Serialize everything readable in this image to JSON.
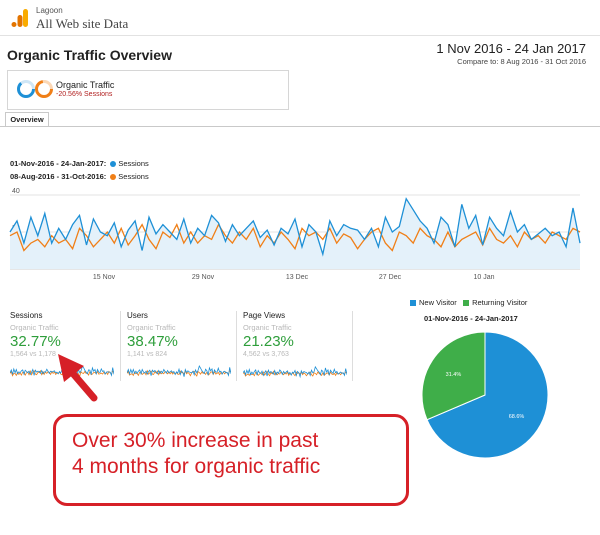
{
  "header": {
    "account_sub": "Lagoon",
    "account_name": "All Web site Data",
    "icon": "google-analytics-logo"
  },
  "report": {
    "title": "Organic Traffic Overview",
    "date_range": "1 Nov 2016 - 24 Jan 2017",
    "compare": "Compare to: 8 Aug 2016 - 31 Oct 2016"
  },
  "segment": {
    "label": "Organic Traffic",
    "change": "-20.56% Sessions"
  },
  "tabs": [
    {
      "label": "Overview"
    }
  ],
  "legend": {
    "current_range": "01-Nov-2016 - 24-Jan-2017:",
    "previous_range": "08-Aug-2016 - 31-Oct-2016:",
    "series_name": "Sessions"
  },
  "colors": {
    "current": "#1e90d6",
    "previous": "#f07f17",
    "new_visitor": "#1e90d6",
    "returning_visitor": "#3fae49",
    "callout": "#d62027",
    "positive": "#2e9e3b"
  },
  "chart_data": {
    "type": "line",
    "y_ticks": [
      "40",
      "20"
    ],
    "ylim": [
      0,
      40
    ],
    "x_ticks": [
      "15 Nov",
      "29 Nov",
      "13 Dec",
      "27 Dec",
      "10 Jan"
    ],
    "series": [
      {
        "name": "Sessions",
        "values": [
          20,
          26,
          14,
          28,
          18,
          30,
          14,
          22,
          16,
          24,
          29,
          13,
          27,
          20,
          18,
          25,
          12,
          21,
          26,
          10,
          28,
          19,
          24,
          20,
          16,
          27,
          14,
          22,
          18,
          29,
          25,
          15,
          24,
          18,
          22,
          26,
          17,
          21,
          13,
          22,
          19,
          27,
          12,
          24,
          20,
          8,
          26,
          18,
          24,
          22,
          21,
          16,
          22,
          12,
          28,
          20,
          23,
          38,
          32,
          26,
          22,
          14,
          28,
          24,
          12,
          35,
          22,
          29,
          13,
          28,
          22,
          18,
          31,
          20,
          24,
          16,
          19,
          22,
          18,
          20,
          12,
          33,
          14
        ]
      },
      {
        "name": "Sessions",
        "values": [
          18,
          20,
          10,
          14,
          16,
          12,
          18,
          14,
          16,
          11,
          22,
          18,
          12,
          16,
          20,
          14,
          22,
          13,
          18,
          24,
          16,
          11,
          20,
          17,
          24,
          14,
          20,
          14,
          18,
          16,
          24,
          18,
          14,
          20,
          16,
          22,
          12,
          18,
          14,
          20,
          16,
          11,
          22,
          18,
          20,
          16,
          22,
          14,
          19,
          17,
          11,
          16,
          20,
          22,
          14,
          10,
          20,
          18,
          14,
          22,
          18,
          16,
          12,
          20,
          12,
          16,
          18,
          20,
          13,
          22,
          16,
          14,
          18,
          12,
          20,
          16,
          18,
          14,
          20,
          18,
          16,
          22,
          20
        ]
      }
    ]
  },
  "metrics": [
    {
      "name": "Sessions",
      "segment": "Organic Traffic",
      "change": "32.77%",
      "vs": "1,564 vs 1,178"
    },
    {
      "name": "Users",
      "segment": "Organic Traffic",
      "change": "38.47%",
      "vs": "1,141 vs 824"
    },
    {
      "name": "Page Views",
      "segment": "Organic Traffic",
      "change": "21.23%",
      "vs": "4,562 vs 3,763"
    }
  ],
  "pie": {
    "legend_new": "New Visitor",
    "legend_returning": "Returning Visitor",
    "title": "01-Nov-2016 - 24-Jan-2017",
    "new_pct": 68.6,
    "returning_pct": 31.4,
    "new_label": "68.6%",
    "returning_label": "31.4%"
  },
  "callout": {
    "line1": "Over 30% increase in past",
    "line2": "4 months for organic traffic"
  }
}
